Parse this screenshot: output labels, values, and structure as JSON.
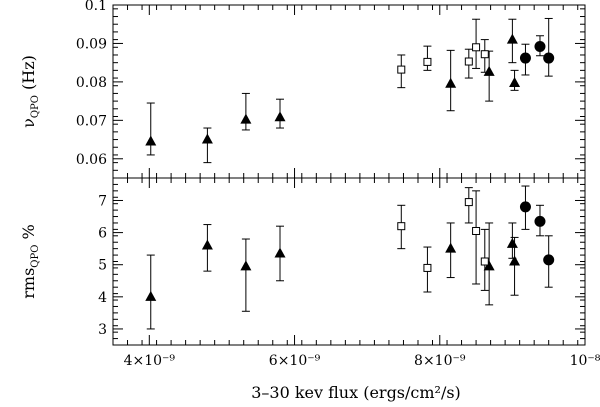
{
  "chart_data": {
    "type": "scatter",
    "x": {
      "label": "3–30 kev flux (ergs/cm²/s)",
      "lim": [
        3.5e-09,
        1e-08
      ],
      "ticks": [
        {
          "value": 4e-09,
          "label": "4×10⁻⁹"
        },
        {
          "value": 6e-09,
          "label": "6×10⁻⁹"
        },
        {
          "value": 8e-09,
          "label": "8×10⁻⁹"
        },
        {
          "value": 1e-08,
          "label": "10⁻⁸"
        }
      ],
      "minor_step": 2e-10
    },
    "panels": [
      {
        "name": "top",
        "ylabel": "ν",
        "ylabel_sub": "QPO",
        "ylabel_tail": " (Hz)",
        "ylim": [
          0.055,
          0.1
        ],
        "ticks": [
          {
            "value": 0.06,
            "label": "0.06"
          },
          {
            "value": 0.07,
            "label": "0.07"
          },
          {
            "value": 0.08,
            "label": "0.08"
          },
          {
            "value": 0.09,
            "label": "0.09"
          },
          {
            "value": 0.1,
            "label": "0.1"
          }
        ],
        "minor_step": 0.002,
        "series": [
          {
            "marker": "triangle",
            "points": [
              {
                "x": 4.02e-09,
                "y": 0.0645,
                "ylo": 0.061,
                "yhi": 0.0745
              },
              {
                "x": 4.8e-09,
                "y": 0.065,
                "ylo": 0.059,
                "yhi": 0.068
              },
              {
                "x": 5.33e-09,
                "y": 0.0702,
                "ylo": 0.0675,
                "yhi": 0.077
              },
              {
                "x": 5.8e-09,
                "y": 0.0708,
                "ylo": 0.068,
                "yhi": 0.0755
              },
              {
                "x": 8.15e-09,
                "y": 0.0795,
                "ylo": 0.0725,
                "yhi": 0.0882
              },
              {
                "x": 8.68e-09,
                "y": 0.0826,
                "ylo": 0.075,
                "yhi": 0.088
              },
              {
                "x": 9e-09,
                "y": 0.091,
                "ylo": 0.085,
                "yhi": 0.0963
              },
              {
                "x": 9.03e-09,
                "y": 0.0797,
                "ylo": 0.0778,
                "yhi": 0.083
              }
            ]
          },
          {
            "marker": "square",
            "points": [
              {
                "x": 7.47e-09,
                "y": 0.0832,
                "ylo": 0.0785,
                "yhi": 0.087
              },
              {
                "x": 7.83e-09,
                "y": 0.0852,
                "ylo": 0.083,
                "yhi": 0.0893
              },
              {
                "x": 8.4e-09,
                "y": 0.0853,
                "ylo": 0.081,
                "yhi": 0.0885
              },
              {
                "x": 8.5e-09,
                "y": 0.089,
                "ylo": 0.0835,
                "yhi": 0.0963
              },
              {
                "x": 8.62e-09,
                "y": 0.0872,
                "ylo": 0.0825,
                "yhi": 0.091
              }
            ]
          },
          {
            "marker": "circle",
            "points": [
              {
                "x": 9.18e-09,
                "y": 0.0862,
                "ylo": 0.0818,
                "yhi": 0.0898
              },
              {
                "x": 9.38e-09,
                "y": 0.0892,
                "ylo": 0.0868,
                "yhi": 0.092
              },
              {
                "x": 9.5e-09,
                "y": 0.0862,
                "ylo": 0.0815,
                "yhi": 0.0965
              }
            ]
          }
        ]
      },
      {
        "name": "bottom",
        "ylabel": "rms",
        "ylabel_sub": "QPO",
        "ylabel_tail": " %",
        "ylim": [
          2.5,
          7.7
        ],
        "ticks": [
          {
            "value": 3,
            "label": "3"
          },
          {
            "value": 4,
            "label": "4"
          },
          {
            "value": 5,
            "label": "5"
          },
          {
            "value": 6,
            "label": "6"
          },
          {
            "value": 7,
            "label": "7"
          }
        ],
        "minor_step": 0.2,
        "series": [
          {
            "marker": "triangle",
            "points": [
              {
                "x": 4.02e-09,
                "y": 4.0,
                "ylo": 3.0,
                "yhi": 5.3
              },
              {
                "x": 4.8e-09,
                "y": 5.6,
                "ylo": 4.8,
                "yhi": 6.25
              },
              {
                "x": 5.33e-09,
                "y": 4.95,
                "ylo": 3.55,
                "yhi": 5.8
              },
              {
                "x": 5.8e-09,
                "y": 5.35,
                "ylo": 4.5,
                "yhi": 6.2
              },
              {
                "x": 8.15e-09,
                "y": 5.5,
                "ylo": 4.6,
                "yhi": 6.3
              },
              {
                "x": 8.68e-09,
                "y": 4.95,
                "ylo": 3.75,
                "yhi": 6.3
              },
              {
                "x": 9e-09,
                "y": 5.65,
                "ylo": 5.2,
                "yhi": 6.3
              },
              {
                "x": 9.03e-09,
                "y": 5.1,
                "ylo": 4.05,
                "yhi": 5.85
              }
            ]
          },
          {
            "marker": "square",
            "points": [
              {
                "x": 7.47e-09,
                "y": 6.2,
                "ylo": 5.5,
                "yhi": 6.85
              },
              {
                "x": 7.83e-09,
                "y": 4.9,
                "ylo": 4.15,
                "yhi": 5.55
              },
              {
                "x": 8.4e-09,
                "y": 6.95,
                "ylo": 6.3,
                "yhi": 7.4
              },
              {
                "x": 8.5e-09,
                "y": 6.05,
                "ylo": 4.4,
                "yhi": 7.3
              },
              {
                "x": 8.62e-09,
                "y": 5.1,
                "ylo": 4.2,
                "yhi": 6.1
              }
            ]
          },
          {
            "marker": "circle",
            "points": [
              {
                "x": 9.18e-09,
                "y": 6.8,
                "ylo": 6.1,
                "yhi": 7.45
              },
              {
                "x": 9.38e-09,
                "y": 6.35,
                "ylo": 5.9,
                "yhi": 6.85
              },
              {
                "x": 9.5e-09,
                "y": 5.15,
                "ylo": 4.3,
                "yhi": 5.9
              }
            ]
          }
        ]
      }
    ]
  }
}
